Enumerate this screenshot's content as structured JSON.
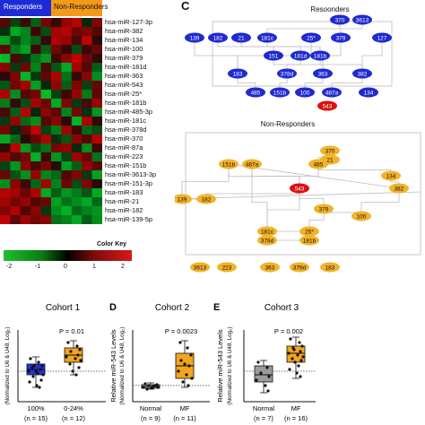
{
  "heatmap": {
    "groups": [
      {
        "label": "Responders",
        "color": "#1d2bd6"
      },
      {
        "label": "Non-Responders",
        "color": "#f39a1a"
      }
    ],
    "genes": [
      "hsa-miR-127-3p",
      "hsa-miR-382",
      "hsa-miR-134",
      "hsa-miR-100",
      "hsa-miR-379",
      "hsa-miR-181d",
      "hsa-miR-363",
      "hsa-miR-543",
      "hsa-miR-25*",
      "hsa-miR-181b",
      "hsa-miR-485-3p",
      "hsa-miR-181c",
      "hsa-miR-378d",
      "hsa-miR-370",
      "hsa-miR-87a",
      "hsa-miR-223",
      "hsa-miR-151b",
      "hsa-miR-3613-3p",
      "hsa-miR-151-3p",
      "hsa-miR-183",
      "hsa-miR-21",
      "hsa-miR-182",
      "hsa-miR-139-5p"
    ],
    "values": [
      [
        0.6,
        -0.5,
        0.4,
        -0.8,
        0.9,
        0.3,
        1.2,
        1.5,
        -0.2,
        1.0
      ],
      [
        -0.3,
        -1.6,
        -1.2,
        0.4,
        -0.6,
        1.3,
        1.5,
        0.8,
        1.0,
        0.6
      ],
      [
        -1.5,
        -0.6,
        -1.2,
        -0.8,
        0.3,
        1.4,
        1.2,
        0.5,
        1.6,
        0.2
      ],
      [
        0.7,
        -1.1,
        -1.5,
        0.4,
        -0.8,
        0.9,
        0.3,
        -0.6,
        0.4,
        0.8
      ],
      [
        -1.8,
        0.5,
        -0.3,
        -1.0,
        -1.4,
        0.4,
        1.1,
        1.6,
        0.8,
        0.3
      ],
      [
        1.1,
        -0.4,
        0.8,
        -1.2,
        0.5,
        -0.7,
        -1.6,
        1.3,
        0.6,
        -0.8
      ],
      [
        0.2,
        1.0,
        -1.7,
        -0.4,
        0.7,
        1.4,
        -1.0,
        0.3,
        1.1,
        -1.3
      ],
      [
        -0.7,
        0.9,
        1.3,
        -1.5,
        -0.2,
        1.2,
        -0.8,
        1.0,
        -0.5,
        0.8
      ],
      [
        1.4,
        -1.3,
        0.6,
        0.9,
        -1.8,
        -0.5,
        0.4,
        1.2,
        -1.1,
        0.7
      ],
      [
        -1.1,
        0.3,
        -0.6,
        1.3,
        0.8,
        -1.6,
        1.0,
        -0.4,
        0.5,
        1.2
      ],
      [
        0.5,
        -0.8,
        1.5,
        -0.2,
        1.1,
        0.7,
        -1.2,
        0.9,
        -0.3,
        -1.4
      ],
      [
        -0.4,
        1.2,
        -0.9,
        -1.3,
        0.6,
        1.1,
        0.2,
        -1.7,
        1.4,
        0.3
      ],
      [
        0.9,
        -0.2,
        0.7,
        1.6,
        -0.5,
        -1.1,
        1.3,
        0.4,
        -0.9,
        -0.6
      ],
      [
        -1.6,
        -0.9,
        0.2,
        0.8,
        1.4,
        -0.3,
        -0.7,
        1.1,
        0.6,
        1.5
      ],
      [
        0.3,
        1.5,
        -1.4,
        -0.6,
        -1.0,
        0.9,
        1.2,
        -0.2,
        -1.3,
        0.4
      ],
      [
        1.2,
        0.6,
        0.9,
        -1.7,
        0.4,
        -1.4,
        -0.5,
        1.3,
        0.8,
        -1.0
      ],
      [
        -0.5,
        -1.4,
        1.1,
        0.5,
        0.9,
        0.2,
        -1.5,
        -0.8,
        1.2,
        0.7
      ],
      [
        0.8,
        -0.7,
        -1.3,
        1.2,
        -1.2,
        -0.9,
        0.6,
        1.0,
        -0.4,
        -1.5
      ],
      [
        -1.3,
        1.1,
        0.4,
        -0.9,
        1.3,
        -1.2,
        0.8,
        -0.6,
        1.0,
        0.2
      ],
      [
        1.5,
        1.3,
        0.8,
        1.4,
        -1.6,
        -0.8,
        -1.4,
        -1.1,
        -0.7,
        -1.6
      ],
      [
        1.3,
        0.9,
        1.2,
        0.6,
        0.8,
        -1.5,
        -1.0,
        -1.3,
        -1.6,
        -0.9
      ],
      [
        1.0,
        1.4,
        0.5,
        1.1,
        -0.4,
        -1.3,
        -1.7,
        -0.9,
        -1.2,
        -1.4
      ],
      [
        1.6,
        0.7,
        1.3,
        0.9,
        1.1,
        -1.0,
        -1.2,
        -1.6,
        -0.8,
        -1.3
      ]
    ],
    "colorkey": {
      "title": "Color Key",
      "ticks": [
        "-2",
        "-1",
        "0",
        "1",
        "2"
      ]
    }
  },
  "panel_c": {
    "letter": "C",
    "responders_title": "Resoonders",
    "nonresponders_title": "Non-Responders",
    "resp_nodes": [
      "370",
      "3613",
      "139",
      "182",
      "21",
      "181c",
      "25*",
      "379",
      "127",
      "151",
      "181d",
      "181b",
      "183",
      "378d",
      "363",
      "382",
      "485",
      "151b",
      "100",
      "487a",
      "134",
      "543"
    ],
    "nonresp_nodes": [
      "370",
      "21",
      "151b",
      "487a",
      "485",
      "134",
      "139",
      "182",
      "543",
      "382",
      "379",
      "100",
      "181c",
      "25*",
      "378d",
      "181b",
      "3613",
      "223",
      "363",
      "378d",
      "183"
    ],
    "colors": {
      "responder": "#1f2ad0",
      "nonresponder": "#f2b32a",
      "hub": "#dd1111"
    }
  },
  "cohort1": {
    "title": "Cohort 1",
    "ylabel2": "(Normalized to U6 & U48, Log₂)",
    "pval": "P = 0.01",
    "cats": [
      "100%",
      "0-24%"
    ],
    "ns": [
      "(n = 15)",
      "(n = 12)"
    ],
    "colors": [
      "#2432d6",
      "#f2a51e"
    ]
  },
  "cohort2": {
    "letter": "D",
    "title": "Cohort 2",
    "ylabel": "Relative miR-543 Levels",
    "ylabel2": "(Normalized to U6 & U48, Log₂)",
    "pval": "P = 0.0023",
    "cats": [
      "Normal",
      "MF"
    ],
    "ns": [
      "(n = 9)",
      "(n = 11)"
    ],
    "colors": [
      "#9b9b9b",
      "#f2a51e"
    ]
  },
  "cohort3": {
    "letter": "E",
    "title": "Cohort 3",
    "ylabel": "Relative miR-543 Levels",
    "ylabel2": "(Normalized to U6 & U48, Log₂)",
    "pval": "P = 0.002",
    "cats": [
      "Normal",
      "MF"
    ],
    "ns": [
      "(n = 7)",
      "(n = 16)"
    ],
    "colors": [
      "#9b9b9b",
      "#f2a51e"
    ]
  }
}
